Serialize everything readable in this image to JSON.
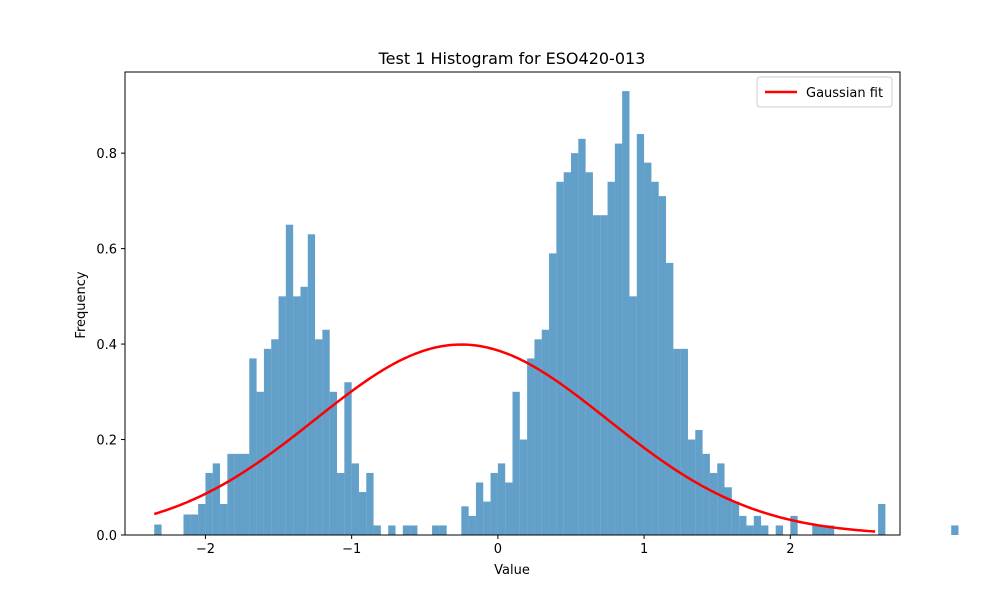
{
  "chart_data": {
    "type": "bar",
    "title": "Test 1 Histogram for ESO420-013",
    "xlabel": "Value",
    "ylabel": "Frequency",
    "xlim": [
      -2.55,
      2.75
    ],
    "ylim": [
      0,
      0.97
    ],
    "xticks": [
      -2,
      -1,
      0,
      1,
      2
    ],
    "xtick_labels": [
      "−2",
      "−1",
      "0",
      "1",
      "2"
    ],
    "yticks": [
      0.0,
      0.2,
      0.4,
      0.6,
      0.8
    ],
    "ytick_labels": [
      "0.0",
      "0.2",
      "0.4",
      "0.6",
      "0.8"
    ],
    "grid": false,
    "legend": {
      "position": "top-right",
      "entries": [
        "Gaussian fit"
      ]
    },
    "histogram": {
      "bin_start": -2.35,
      "bin_width": 0.05,
      "color": "#1f77b4",
      "alpha": 0.7,
      "values": [
        0.022,
        0,
        0,
        0,
        0.043,
        0.043,
        0.065,
        0.13,
        0.15,
        0.065,
        0.17,
        0.17,
        0.17,
        0.37,
        0.3,
        0.39,
        0.41,
        0.5,
        0.65,
        0.5,
        0.52,
        0.63,
        0.41,
        0.43,
        0.3,
        0.13,
        0.32,
        0.15,
        0.09,
        0.13,
        0.02,
        0,
        0.02,
        0,
        0.02,
        0.02,
        0,
        0,
        0.02,
        0.02,
        0,
        0,
        0.06,
        0.04,
        0.11,
        0.07,
        0.13,
        0.15,
        0.11,
        0.3,
        0.2,
        0.37,
        0.41,
        0.43,
        0.59,
        0.74,
        0.76,
        0.8,
        0.83,
        0.76,
        0.67,
        0.67,
        0.74,
        0.82,
        0.93,
        0.5,
        0.84,
        0.78,
        0.74,
        0.71,
        0.57,
        0.39,
        0.39,
        0.2,
        0.22,
        0.17,
        0.13,
        0.15,
        0.1,
        0.07,
        0.04,
        0.02,
        0.04,
        0.02,
        0,
        0.02,
        0,
        0.04,
        0,
        0,
        0.02,
        0.02,
        0.02,
        0,
        0,
        0,
        0,
        0,
        0,
        0.065,
        0,
        0,
        0,
        0,
        0,
        0,
        0,
        0,
        0,
        0.02
      ]
    },
    "series": [
      {
        "name": "Gaussian fit",
        "type": "line",
        "color": "#ff0000",
        "mean": -0.25,
        "std": 1.0,
        "amplitude": 0.399,
        "x_range": [
          -2.35,
          2.58
        ]
      }
    ]
  }
}
